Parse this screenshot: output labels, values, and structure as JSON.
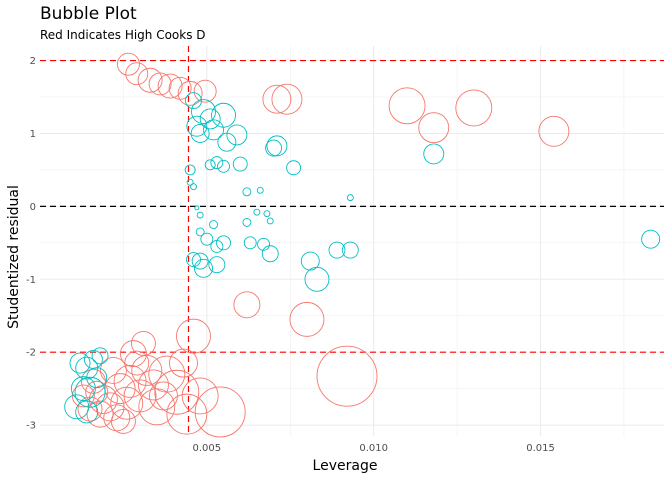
{
  "chart_data": {
    "type": "scatter",
    "title": "Bubble Plot",
    "subtitle": "Red Indicates High Cooks D",
    "xlabel": "Leverage",
    "ylabel": "Studentized residual",
    "xlim": [
      0.0,
      0.0187
    ],
    "ylim": [
      -3.15,
      2.2
    ],
    "xticks": [
      0.005,
      0.01,
      0.015
    ],
    "xtick_labels": [
      "0.005",
      "0.010",
      "0.015"
    ],
    "yticks": [
      -3,
      -2,
      -1,
      0,
      1,
      2
    ],
    "ytick_labels": [
      "-3",
      "-2",
      "-1",
      "0",
      "1",
      "2"
    ],
    "grid": true,
    "reference_lines": {
      "horizontal_red_dashed": [
        2,
        -2
      ],
      "horizontal_black_dashed": [
        0
      ],
      "vertical_red_dashed": [
        0.00445
      ]
    },
    "colors": {
      "high_cooks_d": "#F8766D",
      "low_cooks_d": "#00BFC4",
      "threshold": "#ff0000",
      "zero_line": "#000000",
      "grid": "#ebebeb"
    },
    "series": [
      {
        "color": "#F8766D",
        "points": [
          {
            "x": 0.00265,
            "y": 1.95,
            "r": 11
          },
          {
            "x": 0.0029,
            "y": 1.82,
            "r": 11
          },
          {
            "x": 0.0033,
            "y": 1.73,
            "r": 12
          },
          {
            "x": 0.0036,
            "y": 1.68,
            "r": 11
          },
          {
            "x": 0.0039,
            "y": 1.65,
            "r": 12
          },
          {
            "x": 0.0042,
            "y": 1.62,
            "r": 11
          },
          {
            "x": 0.0045,
            "y": 1.55,
            "r": 12
          },
          {
            "x": 0.00495,
            "y": 1.58,
            "r": 11
          },
          {
            "x": 0.0071,
            "y": 1.47,
            "r": 14
          },
          {
            "x": 0.0074,
            "y": 1.47,
            "r": 15
          },
          {
            "x": 0.011,
            "y": 1.38,
            "r": 18
          },
          {
            "x": 0.0118,
            "y": 1.08,
            "r": 15
          },
          {
            "x": 0.013,
            "y": 1.35,
            "r": 18
          },
          {
            "x": 0.0154,
            "y": 1.03,
            "r": 15
          },
          {
            "x": 0.0062,
            "y": -1.35,
            "r": 13
          },
          {
            "x": 0.008,
            "y": -1.55,
            "r": 17
          },
          {
            "x": 0.0092,
            "y": -2.33,
            "r": 30
          },
          {
            "x": 0.0046,
            "y": -1.78,
            "r": 17
          },
          {
            "x": 0.0043,
            "y": -2.15,
            "r": 14
          },
          {
            "x": 0.0038,
            "y": -2.3,
            "r": 18
          },
          {
            "x": 0.0041,
            "y": -2.55,
            "r": 22
          },
          {
            "x": 0.0048,
            "y": -2.6,
            "r": 18
          },
          {
            "x": 0.0054,
            "y": -2.82,
            "r": 25
          },
          {
            "x": 0.0044,
            "y": -2.85,
            "r": 20
          },
          {
            "x": 0.0035,
            "y": -2.75,
            "r": 18
          },
          {
            "x": 0.003,
            "y": -2.6,
            "r": 16
          },
          {
            "x": 0.0027,
            "y": -2.4,
            "r": 16
          },
          {
            "x": 0.0032,
            "y": -2.25,
            "r": 15
          },
          {
            "x": 0.0028,
            "y": -2.02,
            "r": 13
          },
          {
            "x": 0.0031,
            "y": -1.88,
            "r": 12
          },
          {
            "x": 0.0022,
            "y": -2.25,
            "r": 13
          },
          {
            "x": 0.0024,
            "y": -2.5,
            "r": 15
          },
          {
            "x": 0.0021,
            "y": -2.75,
            "r": 14
          },
          {
            "x": 0.0018,
            "y": -2.85,
            "r": 13
          },
          {
            "x": 0.0015,
            "y": -2.78,
            "r": 12
          },
          {
            "x": 0.0013,
            "y": -2.6,
            "r": 11
          },
          {
            "x": 0.0016,
            "y": -2.4,
            "r": 12
          },
          {
            "x": 0.0019,
            "y": -2.65,
            "r": 14
          },
          {
            "x": 0.0026,
            "y": -2.7,
            "r": 16
          },
          {
            "x": 0.0023,
            "y": -2.9,
            "r": 13
          },
          {
            "x": 0.0029,
            "y": -2.15,
            "r": 12
          },
          {
            "x": 0.0034,
            "y": -2.45,
            "r": 15
          },
          {
            "x": 0.0037,
            "y": -2.6,
            "r": 14
          },
          {
            "x": 0.0017,
            "y": -2.55,
            "r": 11
          },
          {
            "x": 0.0025,
            "y": -2.95,
            "r": 12
          }
        ]
      },
      {
        "color": "#00BFC4",
        "points": [
          {
            "x": 0.0046,
            "y": 1.45,
            "r": 8
          },
          {
            "x": 0.0047,
            "y": 1.1,
            "r": 10
          },
          {
            "x": 0.0049,
            "y": 1.3,
            "r": 12
          },
          {
            "x": 0.0051,
            "y": 1.2,
            "r": 10
          },
          {
            "x": 0.0052,
            "y": 1.05,
            "r": 10
          },
          {
            "x": 0.0055,
            "y": 1.25,
            "r": 12
          },
          {
            "x": 0.0048,
            "y": 1.0,
            "r": 9
          },
          {
            "x": 0.0056,
            "y": 0.88,
            "r": 9
          },
          {
            "x": 0.0059,
            "y": 0.98,
            "r": 10
          },
          {
            "x": 0.0053,
            "y": 0.6,
            "r": 6
          },
          {
            "x": 0.0051,
            "y": 0.57,
            "r": 5
          },
          {
            "x": 0.0055,
            "y": 0.55,
            "r": 6
          },
          {
            "x": 0.006,
            "y": 0.58,
            "r": 7
          },
          {
            "x": 0.007,
            "y": 0.8,
            "r": 8
          },
          {
            "x": 0.0071,
            "y": 0.83,
            "r": 10
          },
          {
            "x": 0.0076,
            "y": 0.53,
            "r": 7
          },
          {
            "x": 0.0118,
            "y": 0.72,
            "r": 10
          },
          {
            "x": 0.0045,
            "y": 0.5,
            "r": 5
          },
          {
            "x": 0.0045,
            "y": 0.33,
            "r": 3
          },
          {
            "x": 0.0046,
            "y": 0.27,
            "r": 3
          },
          {
            "x": 0.0062,
            "y": 0.2,
            "r": 4
          },
          {
            "x": 0.0066,
            "y": 0.22,
            "r": 3
          },
          {
            "x": 0.0093,
            "y": 0.12,
            "r": 3
          },
          {
            "x": 0.0047,
            "y": -0.02,
            "r": 2
          },
          {
            "x": 0.0048,
            "y": -0.12,
            "r": 3
          },
          {
            "x": 0.0065,
            "y": -0.08,
            "r": 3
          },
          {
            "x": 0.0068,
            "y": -0.1,
            "r": 3
          },
          {
            "x": 0.0062,
            "y": -0.22,
            "r": 4
          },
          {
            "x": 0.0069,
            "y": -0.2,
            "r": 3
          },
          {
            "x": 0.0052,
            "y": -0.25,
            "r": 4
          },
          {
            "x": 0.0048,
            "y": -0.35,
            "r": 4
          },
          {
            "x": 0.005,
            "y": -0.45,
            "r": 6
          },
          {
            "x": 0.0053,
            "y": -0.55,
            "r": 6
          },
          {
            "x": 0.0055,
            "y": -0.5,
            "r": 7
          },
          {
            "x": 0.0063,
            "y": -0.5,
            "r": 6
          },
          {
            "x": 0.0067,
            "y": -0.52,
            "r": 6
          },
          {
            "x": 0.0046,
            "y": -0.73,
            "r": 7
          },
          {
            "x": 0.0048,
            "y": -0.75,
            "r": 8
          },
          {
            "x": 0.0049,
            "y": -0.85,
            "r": 9
          },
          {
            "x": 0.0053,
            "y": -0.8,
            "r": 8
          },
          {
            "x": 0.0069,
            "y": -0.65,
            "r": 8
          },
          {
            "x": 0.0081,
            "y": -0.75,
            "r": 9
          },
          {
            "x": 0.0083,
            "y": -1.0,
            "r": 12
          },
          {
            "x": 0.0089,
            "y": -0.6,
            "r": 8
          },
          {
            "x": 0.0093,
            "y": -0.6,
            "r": 8
          },
          {
            "x": 0.0183,
            "y": -0.45,
            "r": 9
          },
          {
            "x": 0.0012,
            "y": -2.15,
            "r": 10
          },
          {
            "x": 0.0014,
            "y": -2.22,
            "r": 11
          },
          {
            "x": 0.0016,
            "y": -2.1,
            "r": 9
          },
          {
            "x": 0.0018,
            "y": -2.05,
            "r": 8
          },
          {
            "x": 0.0013,
            "y": -2.5,
            "r": 12
          },
          {
            "x": 0.0015,
            "y": -2.55,
            "r": 15
          },
          {
            "x": 0.0011,
            "y": -2.75,
            "r": 12
          },
          {
            "x": 0.0014,
            "y": -2.82,
            "r": 11
          },
          {
            "x": 0.0017,
            "y": -2.35,
            "r": 10
          }
        ]
      }
    ]
  }
}
